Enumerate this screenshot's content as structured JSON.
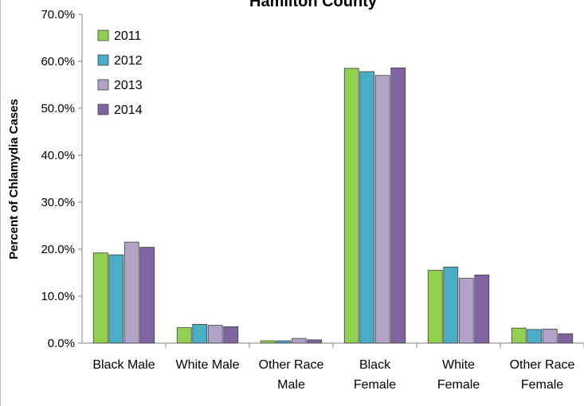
{
  "chart_data": {
    "type": "bar",
    "title": "Hamilton County",
    "ylabel": "Percent of Chlamydia Cases",
    "xlabel": "",
    "ylim": [
      0,
      70
    ],
    "yticks": [
      0,
      10,
      20,
      30,
      40,
      50,
      60,
      70
    ],
    "ytick_labels": [
      "0.0%",
      "10.0%",
      "20.0%",
      "30.0%",
      "40.0%",
      "50.0%",
      "60.0%",
      "70.0%"
    ],
    "categories": [
      [
        "Black Male"
      ],
      [
        "White Male"
      ],
      [
        "Other Race",
        "Male"
      ],
      [
        "Black",
        "Female"
      ],
      [
        "White",
        "Female"
      ],
      [
        "Other Race",
        "Female"
      ]
    ],
    "series": [
      {
        "name": "2011",
        "color": "#92d050",
        "values": [
          19.2,
          3.3,
          0.5,
          58.5,
          15.5,
          3.2
        ]
      },
      {
        "name": "2012",
        "color": "#4bacc6",
        "values": [
          18.8,
          4.0,
          0.5,
          57.8,
          16.2,
          2.9
        ]
      },
      {
        "name": "2013",
        "color": "#b3a2c7",
        "values": [
          21.5,
          3.8,
          1.0,
          57.0,
          13.8,
          3.0
        ]
      },
      {
        "name": "2014",
        "color": "#8064a2",
        "values": [
          20.4,
          3.5,
          0.7,
          58.6,
          14.5,
          2.0
        ]
      }
    ],
    "legend_position": "top-left",
    "grid": false
  }
}
